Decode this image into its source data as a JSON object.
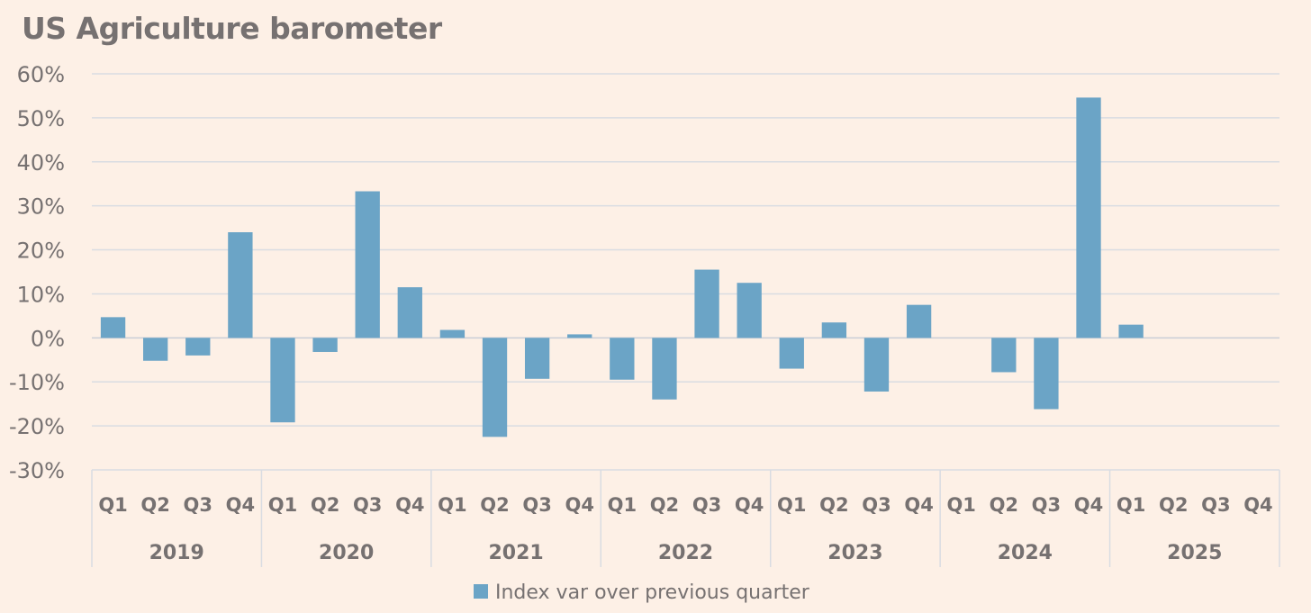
{
  "chart_data": {
    "type": "bar",
    "title": "US Agriculture barometer",
    "ylim": [
      -0.3,
      0.6
    ],
    "yticks": [
      {
        "value": 0.6,
        "label": "60%"
      },
      {
        "value": 0.5,
        "label": "50%"
      },
      {
        "value": 0.4,
        "label": "40%"
      },
      {
        "value": 0.3,
        "label": "30%"
      },
      {
        "value": 0.2,
        "label": "20%"
      },
      {
        "value": 0.1,
        "label": "10%"
      },
      {
        "value": 0.0,
        "label": "0%"
      },
      {
        "value": -0.1,
        "label": "-10%"
      },
      {
        "value": -0.2,
        "label": "-20%"
      },
      {
        "value": -0.3,
        "label": "-30%"
      }
    ],
    "grid": true,
    "legend_position": "bottom",
    "years": [
      "2019",
      "2020",
      "2021",
      "2022",
      "2023",
      "2024",
      "2025"
    ],
    "quarters": [
      "Q1",
      "Q2",
      "Q3",
      "Q4"
    ],
    "series": [
      {
        "name": "Index var over previous quarter",
        "color": "#6ba4c6",
        "values": [
          0.047,
          -0.052,
          -0.04,
          0.24,
          -0.192,
          -0.032,
          0.333,
          0.115,
          0.018,
          -0.225,
          -0.093,
          0.008,
          -0.095,
          -0.14,
          0.155,
          0.125,
          -0.07,
          0.035,
          -0.122,
          0.075,
          null,
          -0.078,
          -0.162,
          0.546,
          0.03,
          null,
          null,
          null
        ]
      }
    ]
  }
}
